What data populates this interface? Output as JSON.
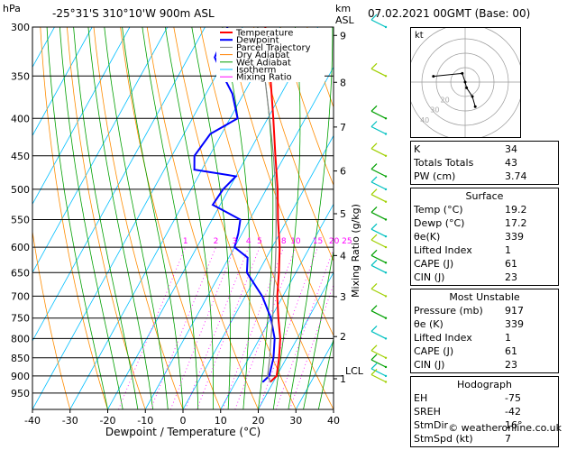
{
  "header": {
    "hpa_label": "hPa",
    "location": "-25°31'S  310°10'W  900m  ASL",
    "km_label": "km",
    "asl_label": "ASL",
    "date": "07.02.2021  00GMT  (Base: 00)"
  },
  "axes": {
    "xlabel": "Dewpoint / Temperature (°C)",
    "ylabel_right": "Mixing Ratio (g/kg)"
  },
  "legend": {
    "items": [
      {
        "label": "Temperature",
        "color": "#ff0000"
      },
      {
        "label": "Dewpoint",
        "color": "#0000ff"
      },
      {
        "label": "Parcel Trajectory",
        "color": "#808080"
      },
      {
        "label": "Dry Adiabat",
        "color": "#ff8000"
      },
      {
        "label": "Wet Adiabat",
        "color": "#00a000"
      },
      {
        "label": "Isotherm",
        "color": "#00c0ff"
      },
      {
        "label": "Mixing Ratio",
        "color": "#ff00ff"
      }
    ]
  },
  "chart_data": {
    "type": "line",
    "title": "-25°31'S  310°10'W  900m  ASL",
    "xlabel": "Dewpoint / Temperature (°C)",
    "ylabel": "hPa",
    "x_ticks": [
      -40,
      -30,
      -20,
      -10,
      0,
      10,
      20,
      30,
      40
    ],
    "pressure_levels": [
      300,
      350,
      400,
      450,
      500,
      550,
      600,
      650,
      700,
      750,
      800,
      850,
      900,
      950
    ],
    "km_ticks": [
      {
        "label": "1",
        "p": 908
      },
      {
        "label": "2",
        "p": 795
      },
      {
        "label": "3",
        "p": 701
      },
      {
        "label": "4",
        "p": 616
      },
      {
        "label": "5",
        "p": 540
      },
      {
        "label": "6",
        "p": 472
      },
      {
        "label": "7",
        "p": 411
      },
      {
        "label": "8",
        "p": 357
      },
      {
        "label": "9",
        "p": 308
      }
    ],
    "lcl": {
      "label": "LCL",
      "p": 900
    },
    "mixing_ratio_labels": [
      {
        "label": "1",
        "value": 1
      },
      {
        "label": "2",
        "value": 2
      },
      {
        "label": "3",
        "value": 3
      },
      {
        "label": "4",
        "value": 4
      },
      {
        "label": "5",
        "value": 5
      },
      {
        "label": "8",
        "value": 8
      },
      {
        "label": "10",
        "value": 10
      },
      {
        "label": "15",
        "value": 15
      },
      {
        "label": "20",
        "value": 20
      },
      {
        "label": "25",
        "value": 25
      }
    ],
    "series": [
      {
        "name": "Temperature",
        "color": "#ff0000",
        "points": [
          {
            "p": 917,
            "t": 19.2
          },
          {
            "p": 900,
            "t": 20.0
          },
          {
            "p": 850,
            "t": 18.0
          },
          {
            "p": 800,
            "t": 15.5
          },
          {
            "p": 750,
            "t": 12.0
          },
          {
            "p": 700,
            "t": 8.5
          },
          {
            "p": 650,
            "t": 5.5
          },
          {
            "p": 600,
            "t": 2.0
          },
          {
            "p": 550,
            "t": -2.5
          },
          {
            "p": 500,
            "t": -7.0
          },
          {
            "p": 450,
            "t": -12.5
          },
          {
            "p": 400,
            "t": -18.5
          },
          {
            "p": 350,
            "t": -25.5
          },
          {
            "p": 300,
            "t": -34.0
          }
        ]
      },
      {
        "name": "Dewpoint",
        "color": "#0000ff",
        "points": [
          {
            "p": 917,
            "t": 17.2
          },
          {
            "p": 900,
            "t": 18.0
          },
          {
            "p": 850,
            "t": 16.5
          },
          {
            "p": 800,
            "t": 14.0
          },
          {
            "p": 750,
            "t": 10.0
          },
          {
            "p": 700,
            "t": 4.5
          },
          {
            "p": 650,
            "t": -3.0
          },
          {
            "p": 620,
            "t": -5.0
          },
          {
            "p": 600,
            "t": -10.0
          },
          {
            "p": 575,
            "t": -11.0
          },
          {
            "p": 550,
            "t": -12.5
          },
          {
            "p": 525,
            "t": -22.0
          },
          {
            "p": 500,
            "t": -21.5
          },
          {
            "p": 480,
            "t": -20.0
          },
          {
            "p": 470,
            "t": -32.0
          },
          {
            "p": 450,
            "t": -34.0
          },
          {
            "p": 420,
            "t": -33.0
          },
          {
            "p": 400,
            "t": -28.0
          },
          {
            "p": 370,
            "t": -33.0
          },
          {
            "p": 350,
            "t": -38.0
          },
          {
            "p": 330,
            "t": -43.0
          },
          {
            "p": 300,
            "t": -44.0
          }
        ]
      },
      {
        "name": "Parcel Trajectory",
        "color": "#808080",
        "points": [
          {
            "p": 917,
            "t": 19.2
          },
          {
            "p": 900,
            "t": 17.6
          },
          {
            "p": 850,
            "t": 15.5
          },
          {
            "p": 800,
            "t": 13.0
          },
          {
            "p": 750,
            "t": 10.5
          },
          {
            "p": 700,
            "t": 7.5
          },
          {
            "p": 650,
            "t": 4.5
          },
          {
            "p": 600,
            "t": 1.0
          },
          {
            "p": 550,
            "t": -3.0
          },
          {
            "p": 500,
            "t": -7.5
          },
          {
            "p": 450,
            "t": -13.0
          },
          {
            "p": 400,
            "t": -19.5
          },
          {
            "p": 350,
            "t": -27.0
          },
          {
            "p": 300,
            "t": -36.0
          }
        ]
      }
    ]
  },
  "hodograph": {
    "label": "kt",
    "ring_labels": [
      "40",
      "30",
      "20"
    ],
    "points": [
      [
        -22,
        4
      ],
      [
        -2,
        6
      ],
      [
        0,
        0
      ],
      [
        1,
        -4
      ],
      [
        5,
        -10
      ],
      [
        7,
        -17
      ]
    ]
  },
  "indices": {
    "K": "34",
    "Totals Totals": "43",
    "PW (cm)": "3.74"
  },
  "surface": {
    "title": "Surface",
    "rows": [
      {
        "label": "Temp (°C)",
        "value": "19.2"
      },
      {
        "label": "Dewp (°C)",
        "value": "17.2"
      },
      {
        "label": "θe(K)",
        "value": "339"
      },
      {
        "label": "Lifted Index",
        "value": "1"
      },
      {
        "label": "CAPE (J)",
        "value": "61"
      },
      {
        "label": "CIN (J)",
        "value": "23"
      }
    ]
  },
  "most_unstable": {
    "title": "Most Unstable",
    "rows": [
      {
        "label": "Pressure (mb)",
        "value": "917"
      },
      {
        "label": "θe (K)",
        "value": "339"
      },
      {
        "label": "Lifted Index",
        "value": "1"
      },
      {
        "label": "CAPE (J)",
        "value": "61"
      },
      {
        "label": "CIN (J)",
        "value": "23"
      }
    ]
  },
  "hodograph_table": {
    "title": "Hodograph",
    "rows": [
      {
        "label": "EH",
        "value": "-75"
      },
      {
        "label": "SREH",
        "value": "-42"
      },
      {
        "label": "StmDir",
        "value": "16°"
      },
      {
        "label": "StmSpd (kt)",
        "value": "7"
      }
    ]
  },
  "footer": "© weatheronline.co.uk"
}
